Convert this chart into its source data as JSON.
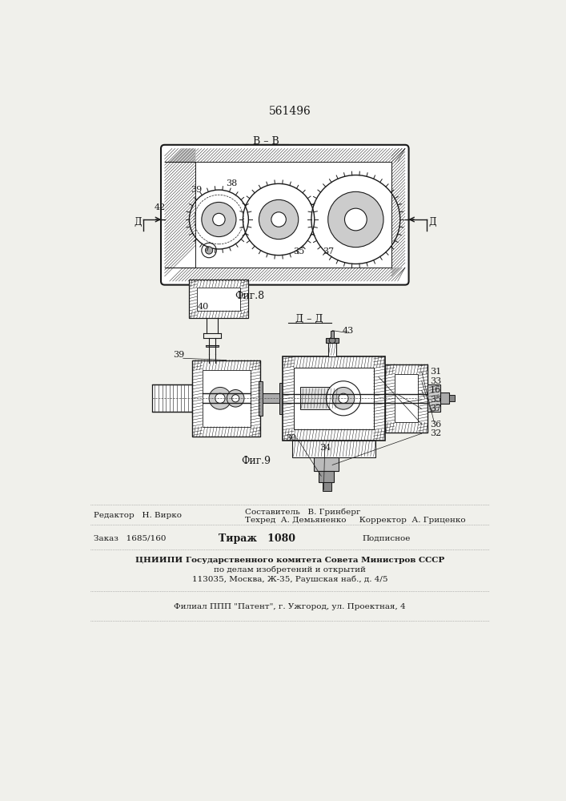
{
  "patent_number": "561496",
  "fig8_label": "В – В",
  "fig8_caption": "Фиг.8",
  "fig9_label": "Д – Д",
  "fig9_caption": "Фиг.9",
  "editor_line": "Редактор   Н. Вирко",
  "composer_line": "Составитель   В. Гринберг",
  "tech_line": "Техред  А. Демьяненко     Корректор  А. Гриценко",
  "order_line": "Заказ   1685/160",
  "tiraj_line": "Тираж   1080",
  "podp_line": "Подписное",
  "cniipi_line": "ЦНИИПИ Государственного комитета Совета Министров СССР",
  "po_delam_line": "по делам изобретений и открытий",
  "address_line": "113035, Москва, Ж-35, Раушская наб., д. 4/5",
  "filial_line": "Филиал ППП \"Патент\", г. Ужгород, ул. Проектная, 4",
  "bg_color": "#f0f0eb",
  "line_color": "#1a1a1a",
  "label_39_fig8": "39",
  "label_38_fig8": "38",
  "label_42_fig8": "42",
  "label_35_fig8": "35",
  "label_37_fig8": "37",
  "label_40_fig8": "40",
  "label_D_left": "Д",
  "label_D_right": "Д",
  "label_39_fig9": "39",
  "label_43_fig9": "43",
  "label_31_fig9": "31",
  "label_33_fig9": "33",
  "label_16_fig9": "16",
  "label_35_fig9": "35",
  "label_37_fig9": "37",
  "label_36_fig9": "36",
  "label_32_fig9": "32",
  "label_30_fig9": "30",
  "label_34_fig9": "34"
}
